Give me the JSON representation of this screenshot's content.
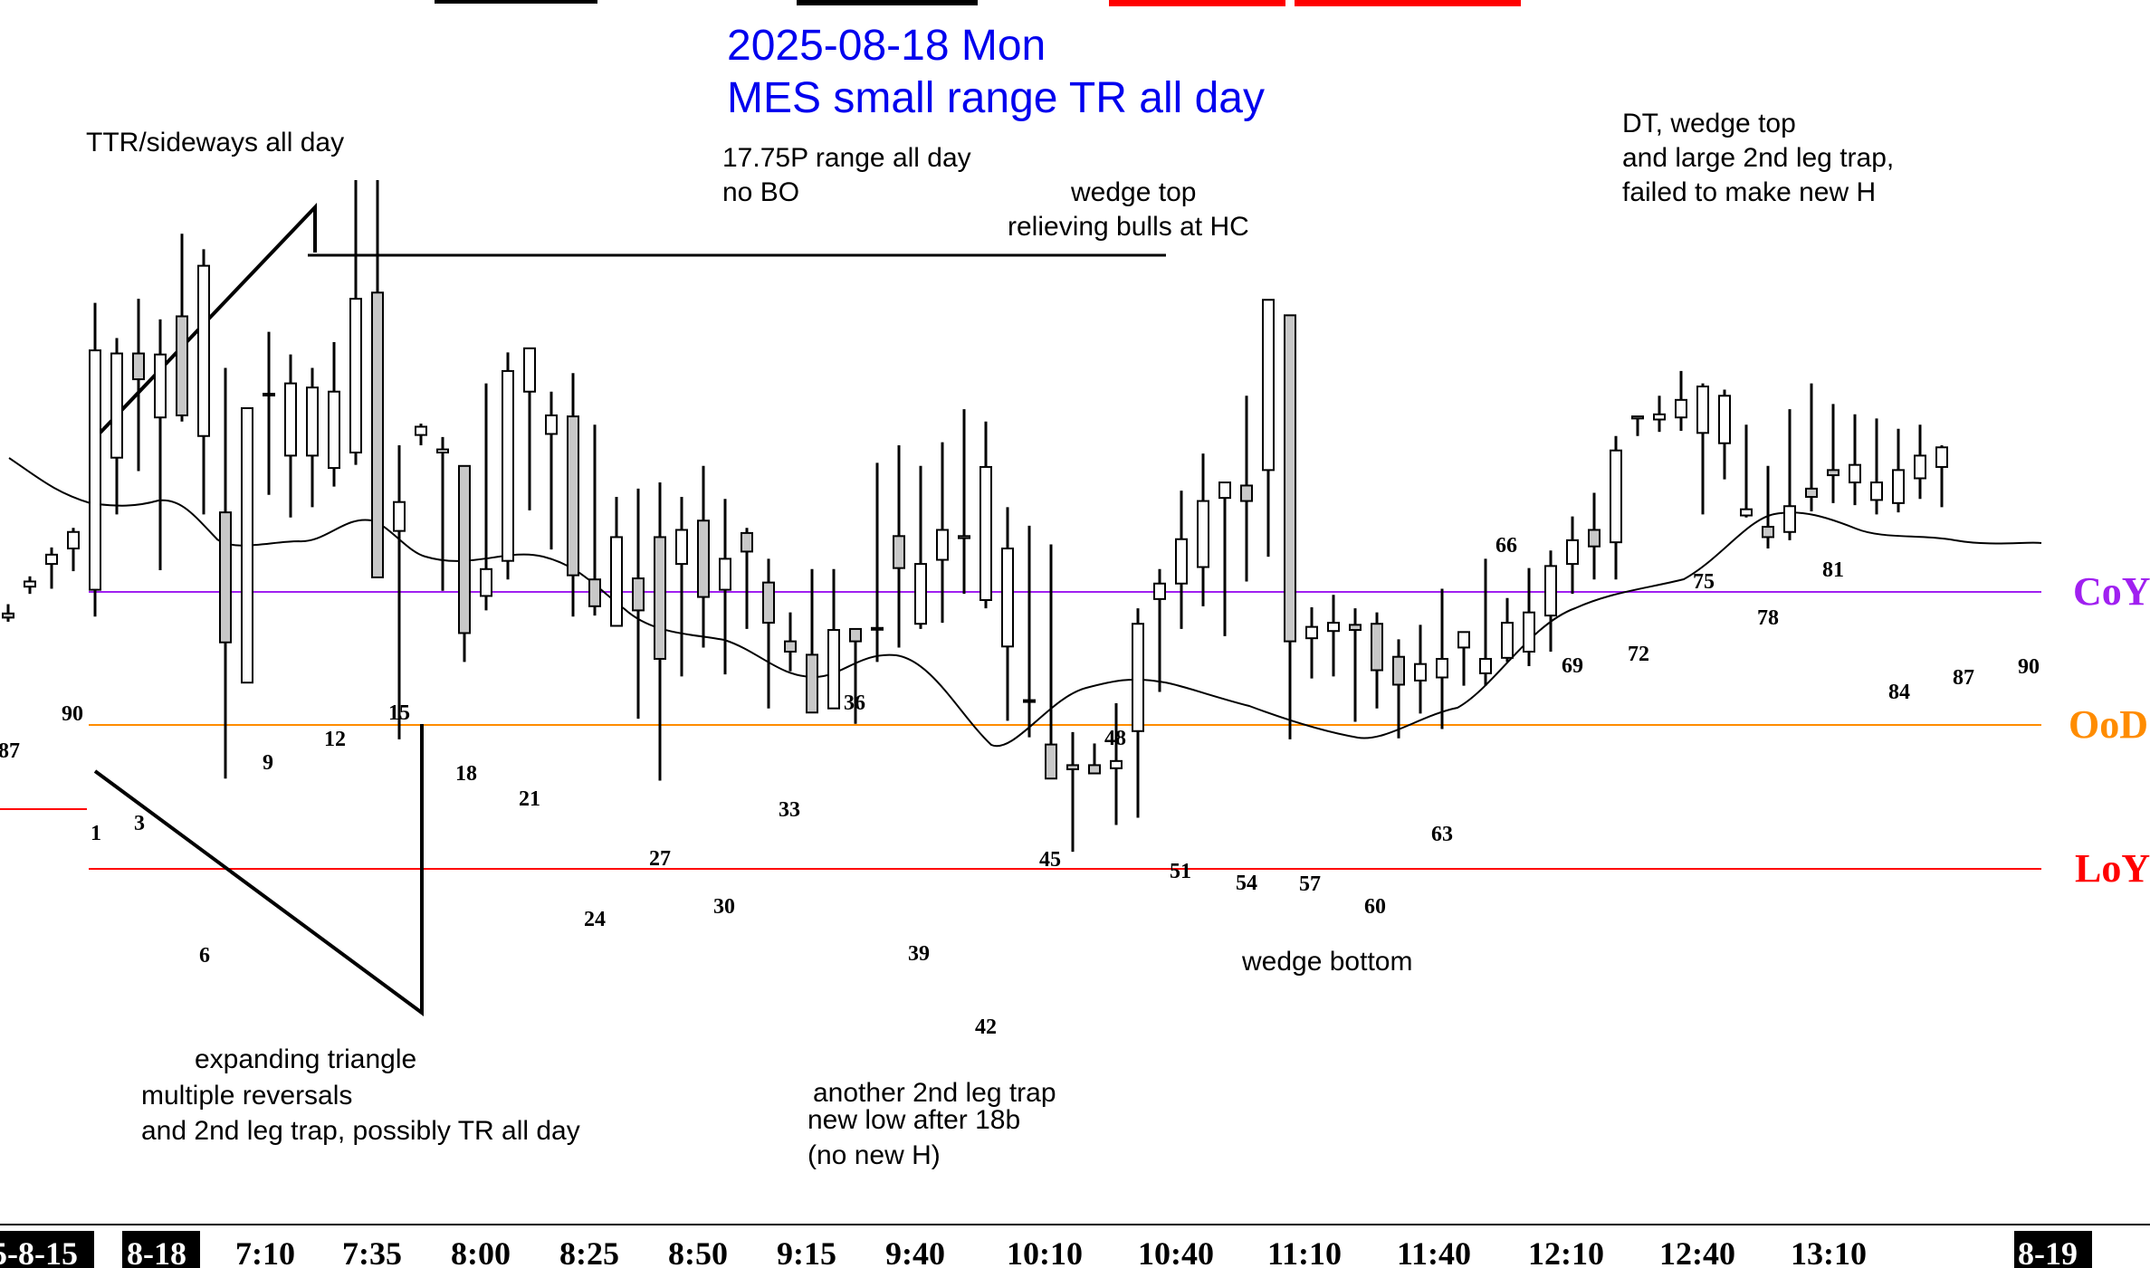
{
  "chart_data": {
    "type": "candlestick",
    "title": [
      "2025-08-18 Mon",
      "MES small range TR all day"
    ],
    "price_range": [
      0,
      1000
    ],
    "bars": [
      {
        "o": 537,
        "h": 546,
        "l": 529,
        "c": 533
      },
      {
        "o": 563,
        "h": 573,
        "l": 556,
        "c": 568
      },
      {
        "o": 585,
        "h": 601,
        "l": 561,
        "c": 594
      },
      {
        "o": 600,
        "h": 620,
        "l": 578,
        "c": 616
      },
      {
        "o": 560,
        "h": 838,
        "l": 534,
        "c": 792
      },
      {
        "o": 688,
        "h": 804,
        "l": 633,
        "c": 789
      },
      {
        "o": 789,
        "h": 842,
        "l": 675,
        "c": 764
      },
      {
        "o": 727,
        "h": 822,
        "l": 579,
        "c": 788
      },
      {
        "o": 825,
        "h": 905,
        "l": 723,
        "c": 729
      },
      {
        "o": 709,
        "h": 890,
        "l": 633,
        "c": 874
      },
      {
        "o": 635,
        "h": 775,
        "l": 377,
        "c": 509
      },
      {
        "o": 470,
        "h": 724,
        "l": 470,
        "c": 736
      },
      {
        "o": 750,
        "h": 810,
        "l": 652,
        "c": 750
      },
      {
        "o": 690,
        "h": 788,
        "l": 630,
        "c": 760
      },
      {
        "o": 690,
        "h": 775,
        "l": 640,
        "c": 756
      },
      {
        "o": 678,
        "h": 800,
        "l": 660,
        "c": 752
      },
      {
        "o": 693,
        "h": 957,
        "l": 681,
        "c": 842
      },
      {
        "o": 848,
        "h": 957,
        "l": 678,
        "c": 572
      },
      {
        "o": 617,
        "h": 700,
        "l": 415,
        "c": 645
      },
      {
        "o": 710,
        "h": 721,
        "l": 700,
        "c": 718
      },
      {
        "o": 693,
        "h": 708,
        "l": 559,
        "c": 696
      },
      {
        "o": 680,
        "h": 637,
        "l": 490,
        "c": 518
      },
      {
        "o": 554,
        "h": 760,
        "l": 540,
        "c": 580
      },
      {
        "o": 588,
        "h": 790,
        "l": 570,
        "c": 772
      },
      {
        "o": 752,
        "h": 772,
        "l": 637,
        "c": 794
      },
      {
        "o": 711,
        "h": 752,
        "l": 599,
        "c": 729
      },
      {
        "o": 728,
        "h": 770,
        "l": 534,
        "c": 574
      },
      {
        "o": 570,
        "h": 720,
        "l": 535,
        "c": 544
      },
      {
        "o": 525,
        "h": 650,
        "l": 547,
        "c": 611
      },
      {
        "o": 571,
        "h": 658,
        "l": 435,
        "c": 540
      },
      {
        "o": 611,
        "h": 664,
        "l": 375,
        "c": 493
      },
      {
        "o": 585,
        "h": 650,
        "l": 476,
        "c": 618
      },
      {
        "o": 627,
        "h": 680,
        "l": 504,
        "c": 553
      },
      {
        "o": 560,
        "h": 648,
        "l": 478,
        "c": 590
      },
      {
        "o": 615,
        "h": 620,
        "l": 522,
        "c": 597
      },
      {
        "o": 567,
        "h": 590,
        "l": 445,
        "c": 528
      },
      {
        "o": 510,
        "h": 538,
        "l": 481,
        "c": 500
      },
      {
        "o": 497,
        "h": 580,
        "l": 455,
        "c": 441
      },
      {
        "o": 445,
        "h": 580,
        "l": 454,
        "c": 521
      },
      {
        "o": 522,
        "h": 510,
        "l": 430,
        "c": 510
      },
      {
        "o": 522,
        "h": 683,
        "l": 490,
        "c": 523
      },
      {
        "o": 612,
        "h": 700,
        "l": 504,
        "c": 581
      },
      {
        "o": 527,
        "h": 680,
        "l": 522,
        "c": 585
      },
      {
        "o": 589,
        "h": 703,
        "l": 528,
        "c": 618
      },
      {
        "o": 610,
        "h": 735,
        "l": 556,
        "c": 612
      },
      {
        "o": 550,
        "h": 723,
        "l": 542,
        "c": 679
      },
      {
        "o": 505,
        "h": 640,
        "l": 433,
        "c": 600
      },
      {
        "o": 453,
        "h": 622,
        "l": 417,
        "c": 453
      },
      {
        "o": 410,
        "h": 604,
        "l": 426,
        "c": 377
      },
      {
        "o": 390,
        "h": 422,
        "l": 306,
        "c": 386
      },
      {
        "o": 390,
        "h": 411,
        "l": 416,
        "c": 382
      },
      {
        "o": 387,
        "h": 450,
        "l": 332,
        "c": 394
      },
      {
        "o": 423,
        "h": 542,
        "l": 339,
        "c": 527
      },
      {
        "o": 551,
        "h": 580,
        "l": 461,
        "c": 566
      },
      {
        "o": 566,
        "h": 656,
        "l": 522,
        "c": 609
      },
      {
        "o": 582,
        "h": 692,
        "l": 544,
        "c": 646
      },
      {
        "o": 649,
        "h": 651,
        "l": 515,
        "c": 664
      },
      {
        "o": 661,
        "h": 748,
        "l": 568,
        "c": 646
      },
      {
        "o": 676,
        "h": 823,
        "l": 592,
        "c": 841
      },
      {
        "o": 826,
        "h": 764,
        "l": 415,
        "c": 510
      },
      {
        "o": 513,
        "h": 543,
        "l": 474,
        "c": 524
      },
      {
        "o": 520,
        "h": 555,
        "l": 476,
        "c": 528
      },
      {
        "o": 526,
        "h": 542,
        "l": 432,
        "c": 521
      },
      {
        "o": 527,
        "h": 538,
        "l": 445,
        "c": 482
      },
      {
        "o": 495,
        "h": 512,
        "l": 416,
        "c": 468
      },
      {
        "o": 472,
        "h": 526,
        "l": 440,
        "c": 488
      },
      {
        "o": 475,
        "h": 561,
        "l": 425,
        "c": 493
      },
      {
        "o": 504,
        "h": 517,
        "l": 467,
        "c": 519
      },
      {
        "o": 479,
        "h": 590,
        "l": 467,
        "c": 493
      },
      {
        "o": 494,
        "h": 552,
        "l": 490,
        "c": 528
      },
      {
        "o": 500,
        "h": 581,
        "l": 486,
        "c": 538
      },
      {
        "o": 535,
        "h": 598,
        "l": 500,
        "c": 583
      },
      {
        "o": 585,
        "h": 631,
        "l": 556,
        "c": 608
      },
      {
        "o": 618,
        "h": 654,
        "l": 570,
        "c": 602
      },
      {
        "o": 606,
        "h": 709,
        "l": 570,
        "c": 695
      },
      {
        "o": 726,
        "h": 724,
        "l": 709,
        "c": 728
      },
      {
        "o": 725,
        "h": 748,
        "l": 713,
        "c": 730
      },
      {
        "o": 727,
        "h": 772,
        "l": 714,
        "c": 744
      },
      {
        "o": 712,
        "h": 760,
        "l": 633,
        "c": 757
      },
      {
        "o": 702,
        "h": 754,
        "l": 667,
        "c": 748
      },
      {
        "o": 632,
        "h": 720,
        "l": 630,
        "c": 638
      },
      {
        "o": 621,
        "h": 680,
        "l": 600,
        "c": 611
      },
      {
        "o": 616,
        "h": 735,
        "l": 608,
        "c": 641
      },
      {
        "o": 658,
        "h": 760,
        "l": 636,
        "c": 650
      },
      {
        "o": 676,
        "h": 740,
        "l": 644,
        "c": 671
      },
      {
        "o": 664,
        "h": 730,
        "l": 642,
        "c": 681
      },
      {
        "o": 647,
        "h": 726,
        "l": 633,
        "c": 664
      },
      {
        "o": 644,
        "h": 716,
        "l": 635,
        "c": 676
      },
      {
        "o": 668,
        "h": 720,
        "l": 648,
        "c": 690
      },
      {
        "o": 679,
        "h": 700,
        "l": 640,
        "c": 698
      }
    ],
    "level_lines": [
      {
        "name": "CoY",
        "color": "#a020f0"
      },
      {
        "name": "OoD",
        "color": "#ff8c00"
      },
      {
        "name": "LoY",
        "color": "#ff0000"
      }
    ],
    "bar_labels": [
      "87",
      "90",
      "1",
      "3",
      "6",
      "9",
      "12",
      "15",
      "18",
      "21",
      "24",
      "27",
      "30",
      "33",
      "36",
      "39",
      "42",
      "45",
      "48",
      "51",
      "54",
      "57",
      "60",
      "63",
      "66",
      "69",
      "72",
      "75",
      "78",
      "81",
      "84",
      "87",
      "90"
    ],
    "x_tick_labels": [
      "5-8-15",
      "8-18",
      "7:10",
      "7:35",
      "8:00",
      "8:25",
      "8:50",
      "9:15",
      "9:40",
      "10:10",
      "10:40",
      "11:10",
      "11:40",
      "12:10",
      "12:40",
      "13:10",
      "8-19"
    ],
    "annotations": {
      "ttr": "TTR/sideways all day",
      "range": [
        "17.75P range all day",
        "no BO"
      ],
      "wedge_top": [
        "wedge top",
        "relieving bulls at HC"
      ],
      "dt": [
        "DT, wedge top",
        "and large 2nd leg trap,",
        "failed to make new H"
      ],
      "exp_triangle": [
        "expanding triangle",
        "multiple reversals",
        "and 2nd leg trap, possibly TR all day"
      ],
      "second_leg": [
        "another 2nd leg trap",
        "new low after 18b",
        "(no new H)"
      ],
      "wedge_bottom": "wedge bottom"
    }
  }
}
